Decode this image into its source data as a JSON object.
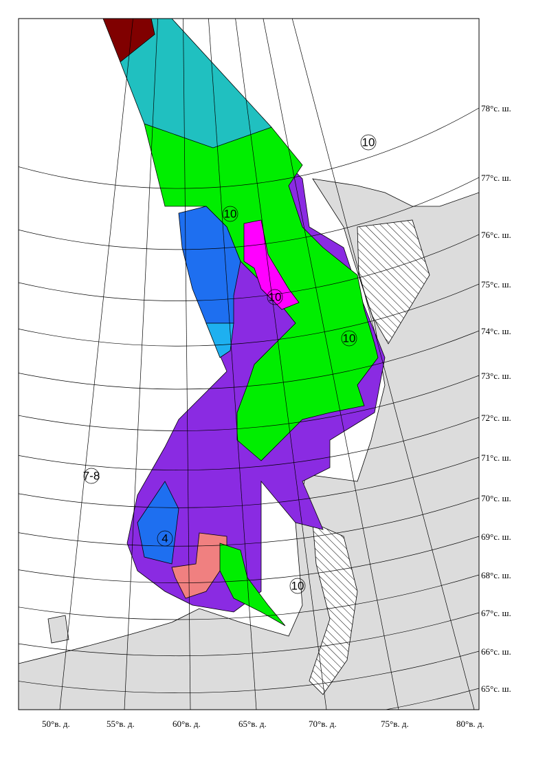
{
  "map": {
    "latitude_labels": [
      "78°с. ш.",
      "77°с. ш.",
      "76°с. ш.",
      "75°с. ш.",
      "74°с. ш.",
      "73°с. ш.",
      "72°с. ш.",
      "71°с. ш.",
      "70°с. ш.",
      "69°с. ш.",
      "68°с. ш.",
      "67°с. ш.",
      "66°с. ш.",
      "65°с. ш."
    ],
    "longitude_labels": [
      "50°в. д.",
      "55°в. д.",
      "60°в. д.",
      "65°в. д.",
      "70°в. д.",
      "75°в. д.",
      "80°в. д."
    ],
    "area_labels": [
      "10",
      "10",
      "10",
      "10",
      "10",
      "4",
      "7-8"
    ]
  }
}
